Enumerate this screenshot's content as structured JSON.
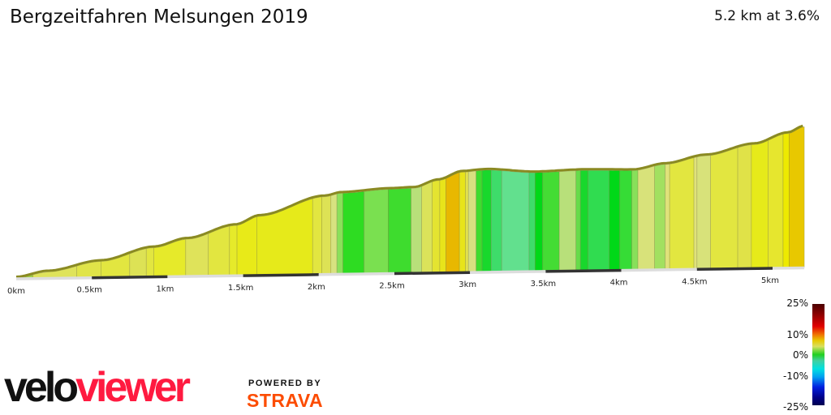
{
  "header": {
    "title": "Bergzeitfahren Melsungen 2019",
    "summary": "5.2 km at 3.6%"
  },
  "legend": {
    "labels": [
      "25%",
      "10%",
      "0%",
      "-10%",
      "-25%"
    ]
  },
  "branding": {
    "logo_velo": "velo",
    "logo_viewer": "viewer",
    "powered_by": "POWERED BY",
    "strava": "STRAVA",
    "logo_colors": {
      "velo": "#111111",
      "viewer": "#ff1a40",
      "strava": "#fc4c02"
    }
  },
  "chart_data": {
    "type": "area",
    "title": "",
    "xlabel": "",
    "ylabel": "",
    "x_ticks": [
      "0km",
      "0.5km",
      "1km",
      "1.5km",
      "2km",
      "2.5km",
      "3km",
      "3.5km",
      "4km",
      "4.5km",
      "5km"
    ],
    "xlim": [
      0,
      5.21
    ],
    "grid": false,
    "legend": "bottom-right color scale (gradient %)",
    "elevation_profile": [
      [
        0,
        0
      ],
      [
        0.21,
        7
      ],
      [
        0.56,
        19
      ],
      [
        0.91,
        35
      ],
      [
        1.13,
        45
      ],
      [
        1.45,
        61
      ],
      [
        1.61,
        72
      ],
      [
        2.04,
        95
      ],
      [
        2.15,
        99
      ],
      [
        2.47,
        103
      ],
      [
        2.63,
        104
      ],
      [
        2.79,
        113
      ],
      [
        2.95,
        123
      ],
      [
        3.11,
        125
      ],
      [
        3.43,
        121
      ],
      [
        3.76,
        123
      ],
      [
        4.08,
        122
      ],
      [
        4.29,
        129
      ],
      [
        4.56,
        139
      ],
      [
        4.88,
        152
      ],
      [
        5.1,
        165
      ],
      [
        5.21,
        173
      ]
    ],
    "gradient_segments": [
      [
        0.11,
        "#9fcf4a"
      ],
      [
        0.4,
        "#dfe35a"
      ],
      [
        0.56,
        "#e0e448"
      ],
      [
        0.75,
        "#e2e640"
      ],
      [
        0.86,
        "#dde255"
      ],
      [
        0.91,
        "#e2e640"
      ],
      [
        1.12,
        "#e6ea2a"
      ],
      [
        1.27,
        "#dfe35a"
      ],
      [
        1.41,
        "#e2e640"
      ],
      [
        1.46,
        "#e6ea2a"
      ],
      [
        1.59,
        "#e8ea18"
      ],
      [
        1.96,
        "#e6ea1a"
      ],
      [
        2.02,
        "#e2e640"
      ],
      [
        2.08,
        "#dde255"
      ],
      [
        2.12,
        "#d8e280"
      ],
      [
        2.16,
        "#8be05a"
      ],
      [
        2.3,
        "#2edc22"
      ],
      [
        2.46,
        "#7ae050"
      ],
      [
        2.61,
        "#3edc2e"
      ],
      [
        2.68,
        "#b8e07a"
      ],
      [
        2.75,
        "#dbe35a"
      ],
      [
        2.8,
        "#e4e430"
      ],
      [
        2.84,
        "#e8e41a"
      ],
      [
        2.93,
        "#e8b800"
      ],
      [
        2.97,
        "#e8e41a"
      ],
      [
        2.99,
        "#e0e050"
      ],
      [
        3.04,
        "#d8e080"
      ],
      [
        3.08,
        "#3edc2e"
      ],
      [
        3.14,
        "#18d82c"
      ],
      [
        3.21,
        "#3edc6a"
      ],
      [
        3.39,
        "#62e08e"
      ],
      [
        3.43,
        "#3edc6a"
      ],
      [
        3.48,
        "#00d818"
      ],
      [
        3.59,
        "#44dc34"
      ],
      [
        3.7,
        "#b8e07a"
      ],
      [
        3.73,
        "#66dc4a"
      ],
      [
        3.78,
        "#18d82c"
      ],
      [
        3.92,
        "#30dc50"
      ],
      [
        3.99,
        "#00d818"
      ],
      [
        4.07,
        "#36dc36"
      ],
      [
        4.11,
        "#88e05a"
      ],
      [
        4.22,
        "#d8e27a"
      ],
      [
        4.29,
        "#a2e060"
      ],
      [
        4.32,
        "#e0e27a"
      ],
      [
        4.48,
        "#e2e640"
      ],
      [
        4.5,
        "#e0e27a"
      ],
      [
        4.59,
        "#d8e27a"
      ],
      [
        4.77,
        "#e2e640"
      ],
      [
        4.86,
        "#e0e248"
      ],
      [
        4.97,
        "#e6ea1a"
      ],
      [
        5.07,
        "#e6e62e"
      ],
      [
        5.11,
        "#eeea00"
      ],
      [
        5.21,
        "#e8c800"
      ]
    ]
  }
}
